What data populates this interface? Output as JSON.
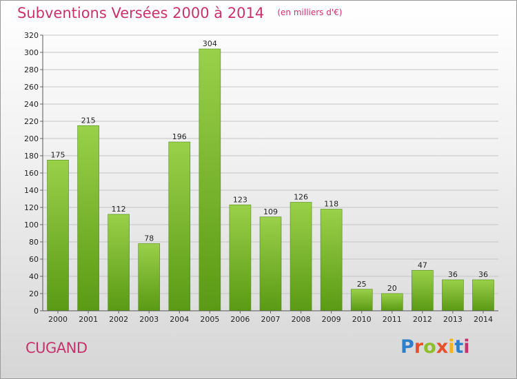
{
  "header": {
    "title": "Subventions Versées 2000 à 2014",
    "subtitle": "(en milliers d'€)"
  },
  "footer": {
    "place": "CUGAND",
    "logo_text": "Proxiti",
    "logo_colors": [
      "#2e7fc9",
      "#e8502a",
      "#8fbe2c",
      "#e8502a",
      "#f2b41c",
      "#2e7fc9",
      "#c8326c"
    ]
  },
  "colors": {
    "title": "#c8326c",
    "bar_light": "#9ad04a",
    "bar_dark": "#5a9a14"
  },
  "chart_data": {
    "type": "bar",
    "title": "Subventions Versées 2000 à 2014",
    "subtitle": "(en milliers d'€)",
    "categories": [
      "2000",
      "2001",
      "2002",
      "2003",
      "2004",
      "2005",
      "2006",
      "2007",
      "2008",
      "2009",
      "2010",
      "2011",
      "2012",
      "2013",
      "2014"
    ],
    "values": [
      175,
      215,
      112,
      78,
      196,
      304,
      123,
      109,
      126,
      118,
      25,
      20,
      47,
      36,
      36
    ],
    "ylim": [
      0,
      320
    ],
    "yticks": [
      0,
      20,
      40,
      60,
      80,
      100,
      120,
      140,
      160,
      180,
      200,
      220,
      240,
      260,
      280,
      300,
      320
    ],
    "grid": true,
    "data_labels": true
  }
}
